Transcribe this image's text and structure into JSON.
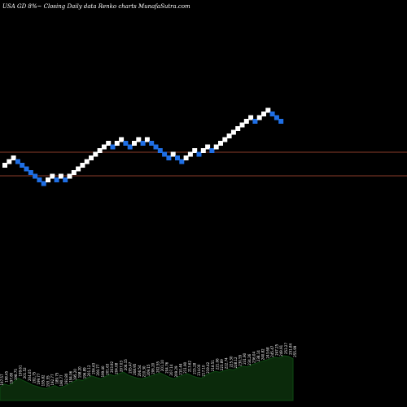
{
  "header": {
    "title": "USA GD 8%~ Closing Daily data Renko charts MunafaSutra.com"
  },
  "chart_data": {
    "type": "renko",
    "title": "USA GD 8%~ Closing Daily data Renko charts MunafaSutra.com",
    "up_color": "#ffffff",
    "down_color": "#1f6fe5",
    "resistance_color": "#8a3b2a",
    "volume_fill": "#0b2a0b",
    "volume_stroke": "#0d4a12",
    "bricks": [
      {
        "y": 203.0,
        "dir": "up"
      },
      {
        "y": 198.5,
        "dir": "up"
      },
      {
        "y": 194.0,
        "dir": "up"
      },
      {
        "y": 198.5,
        "dir": "down"
      },
      {
        "y": 203.0,
        "dir": "down"
      },
      {
        "y": 207.5,
        "dir": "down"
      },
      {
        "y": 212.0,
        "dir": "down"
      },
      {
        "y": 216.5,
        "dir": "down"
      },
      {
        "y": 221.0,
        "dir": "down"
      },
      {
        "y": 225.5,
        "dir": "down"
      },
      {
        "y": 221.0,
        "dir": "up"
      },
      {
        "y": 216.5,
        "dir": "up"
      },
      {
        "y": 221.0,
        "dir": "down"
      },
      {
        "y": 216.5,
        "dir": "up"
      },
      {
        "y": 221.0,
        "dir": "down"
      },
      {
        "y": 216.5,
        "dir": "up"
      },
      {
        "y": 212.0,
        "dir": "up"
      },
      {
        "y": 207.5,
        "dir": "up"
      },
      {
        "y": 203.0,
        "dir": "up"
      },
      {
        "y": 198.5,
        "dir": "up"
      },
      {
        "y": 194.0,
        "dir": "up"
      },
      {
        "y": 189.5,
        "dir": "up"
      },
      {
        "y": 185.0,
        "dir": "up"
      },
      {
        "y": 180.5,
        "dir": "up"
      },
      {
        "y": 176.0,
        "dir": "up"
      },
      {
        "y": 180.5,
        "dir": "down"
      },
      {
        "y": 176.0,
        "dir": "up"
      },
      {
        "y": 171.5,
        "dir": "up"
      },
      {
        "y": 176.0,
        "dir": "down"
      },
      {
        "y": 180.5,
        "dir": "down"
      },
      {
        "y": 176.0,
        "dir": "up"
      },
      {
        "y": 171.5,
        "dir": "up"
      },
      {
        "y": 176.0,
        "dir": "down"
      },
      {
        "y": 171.5,
        "dir": "up"
      },
      {
        "y": 176.0,
        "dir": "down"
      },
      {
        "y": 180.5,
        "dir": "down"
      },
      {
        "y": 185.0,
        "dir": "down"
      },
      {
        "y": 189.5,
        "dir": "down"
      },
      {
        "y": 194.0,
        "dir": "down"
      },
      {
        "y": 189.5,
        "dir": "up"
      },
      {
        "y": 194.0,
        "dir": "down"
      },
      {
        "y": 198.5,
        "dir": "down"
      },
      {
        "y": 194.0,
        "dir": "up"
      },
      {
        "y": 189.5,
        "dir": "up"
      },
      {
        "y": 185.0,
        "dir": "up"
      },
      {
        "y": 189.5,
        "dir": "down"
      },
      {
        "y": 185.0,
        "dir": "up"
      },
      {
        "y": 180.5,
        "dir": "up"
      },
      {
        "y": 185.0,
        "dir": "down"
      },
      {
        "y": 180.5,
        "dir": "up"
      },
      {
        "y": 176.0,
        "dir": "up"
      },
      {
        "y": 171.5,
        "dir": "up"
      },
      {
        "y": 167.0,
        "dir": "up"
      },
      {
        "y": 162.5,
        "dir": "up"
      },
      {
        "y": 158.0,
        "dir": "up"
      },
      {
        "y": 153.5,
        "dir": "up"
      },
      {
        "y": 149.0,
        "dir": "up"
      },
      {
        "y": 144.5,
        "dir": "up"
      },
      {
        "y": 149.0,
        "dir": "down"
      },
      {
        "y": 144.5,
        "dir": "up"
      },
      {
        "y": 140.0,
        "dir": "up"
      },
      {
        "y": 135.5,
        "dir": "up"
      },
      {
        "y": 140.0,
        "dir": "down"
      },
      {
        "y": 144.5,
        "dir": "down"
      },
      {
        "y": 149.0,
        "dir": "down"
      }
    ],
    "resistance_lines": [
      187,
      216
    ],
    "price_labels": [
      "197.57",
      "198.45",
      "197.80",
      "198.75",
      "199.61",
      "201.52",
      "204.05",
      "202.75",
      "199.77",
      "195.82",
      "193.55",
      "192.77",
      "189.75",
      "190.77",
      "192.80",
      "194.06",
      "195.20",
      "198.20",
      "196.89",
      "201.12",
      "204.63",
      "200.77",
      "199.40",
      "201.63",
      "203.92",
      "204.08",
      "207.03",
      "206.15",
      "205.47",
      "208.95",
      "206.54",
      "210.30",
      "209.15",
      "206.20",
      "202.55",
      "201.10",
      "204.76",
      "207.14",
      "209.29",
      "210.44",
      "211.90",
      "213.62",
      "215.28",
      "214.00",
      "217.10",
      "219.42",
      "218.51",
      "221.06",
      "223.89",
      "222.74",
      "225.30",
      "228.12",
      "230.55",
      "231.90",
      "234.26",
      "236.04",
      "238.14",
      "240.82",
      "243.68",
      "245.47",
      "247.25",
      "249.91",
      "253.27",
      "251.84",
      "255.99"
    ],
    "volume": [
      18,
      22,
      20,
      25,
      30,
      27,
      24,
      21,
      19,
      17,
      16,
      18,
      20,
      17,
      19,
      22,
      25,
      28,
      27,
      30,
      33,
      31,
      29,
      32,
      35,
      33,
      36,
      38,
      34,
      32,
      30,
      29,
      31,
      33,
      35,
      37,
      34,
      31,
      29,
      32,
      34,
      36,
      33,
      31,
      30,
      34,
      37,
      39,
      38,
      40,
      42,
      41,
      44,
      46,
      45,
      48,
      50,
      52,
      54,
      56,
      58,
      57,
      60,
      59,
      56
    ],
    "xlabel": "",
    "ylabel": ""
  }
}
